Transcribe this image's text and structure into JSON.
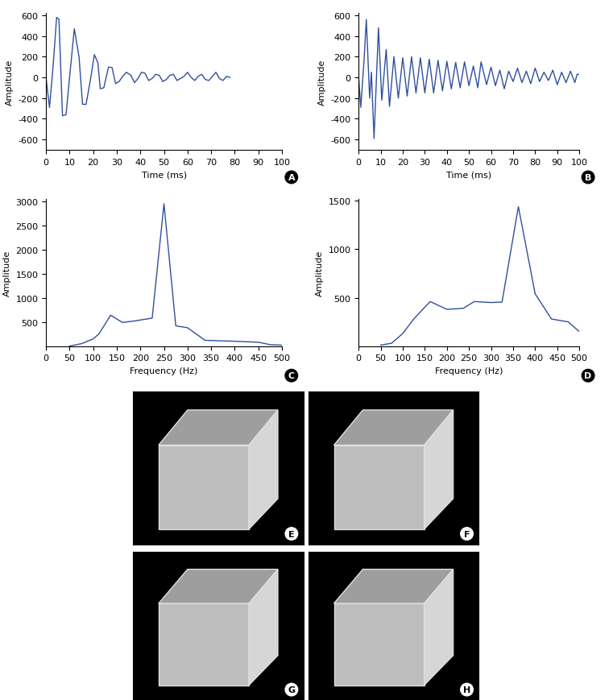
{
  "chart_data": [
    {
      "type": "line",
      "label": "A",
      "xlabel": "Time (ms)",
      "ylabel": "Amplitude",
      "color": "#2f4f9e",
      "x": [
        0,
        1.5,
        3,
        4.5,
        5.5,
        7,
        8.5,
        10,
        12,
        14,
        15.5,
        17,
        19,
        20.5,
        22,
        23,
        24.5,
        26.5,
        28,
        29.5,
        31,
        32.5,
        34,
        36,
        37.5,
        39,
        40.5,
        42,
        43.5,
        45,
        46.5,
        48,
        49.5,
        51,
        52.5,
        54,
        55.5,
        57,
        58.5,
        60,
        61.5,
        63,
        64.5,
        66,
        67.5,
        69,
        70.5,
        72,
        73.5,
        75,
        76.5,
        78
      ],
      "values": [
        0,
        -290,
        100,
        580,
        560,
        -370,
        -360,
        0,
        470,
        200,
        -260,
        -260,
        0,
        220,
        140,
        -110,
        -100,
        100,
        95,
        -60,
        -40,
        10,
        50,
        20,
        -50,
        -10,
        50,
        40,
        -30,
        -10,
        30,
        20,
        -40,
        -20,
        20,
        30,
        -30,
        -10,
        10,
        50,
        0,
        -30,
        10,
        30,
        -20,
        -30,
        10,
        50,
        -10,
        -30,
        10,
        0
      ],
      "xlim": [
        0,
        100
      ],
      "ylim": [
        -700,
        620
      ],
      "xticks": [
        0,
        10,
        20,
        30,
        40,
        50,
        60,
        70,
        80,
        90,
        100
      ],
      "yticks": [
        -600,
        -400,
        -200,
        0,
        200,
        400,
        600
      ]
    },
    {
      "type": "line",
      "label": "B",
      "xlabel": "Time (ms)",
      "ylabel": "Amplitude",
      "color": "#2f4f9e",
      "x": [
        0,
        1,
        2.5,
        3.5,
        5,
        5.8,
        7,
        9,
        10.5,
        12.5,
        14,
        16,
        18,
        20,
        22,
        24,
        26,
        28,
        30,
        32,
        34,
        36,
        38,
        40,
        42,
        44,
        46,
        48,
        50,
        52,
        54,
        55.5,
        58,
        60,
        62,
        64,
        66,
        68,
        70,
        72,
        74,
        76,
        78,
        80,
        82,
        84,
        86,
        88,
        90,
        92,
        94,
        96,
        98,
        99,
        100
      ],
      "values": [
        0,
        -290,
        180,
        560,
        -200,
        50,
        -590,
        480,
        -220,
        270,
        -280,
        200,
        -200,
        190,
        -180,
        200,
        -150,
        190,
        -150,
        175,
        -150,
        165,
        -130,
        155,
        -110,
        145,
        -100,
        150,
        -80,
        110,
        -100,
        150,
        -70,
        100,
        -80,
        70,
        -110,
        60,
        -40,
        90,
        -50,
        60,
        -60,
        90,
        -40,
        50,
        -30,
        70,
        -70,
        50,
        -50,
        60,
        -50,
        30,
        30
      ],
      "xlim": [
        0,
        100
      ],
      "ylim": [
        -700,
        620
      ],
      "xticks": [
        0,
        10,
        20,
        30,
        40,
        50,
        60,
        70,
        80,
        90,
        100
      ],
      "yticks": [
        -600,
        -400,
        -200,
        0,
        200,
        400,
        600
      ]
    },
    {
      "type": "line",
      "label": "C",
      "xlabel": "Frequency (Hz)",
      "ylabel": "Amplitude",
      "color": "#2f4f9e",
      "x": [
        50,
        75,
        100,
        112,
        137,
        162,
        187,
        225,
        250,
        275,
        300,
        337,
        400,
        450,
        475,
        500
      ],
      "values": [
        0,
        50,
        150,
        250,
        640,
        490,
        520,
        580,
        2950,
        420,
        380,
        120,
        100,
        80,
        30,
        20
      ],
      "xlim": [
        0,
        500
      ],
      "ylim": [
        0,
        3050
      ],
      "xticks": [
        0,
        50,
        100,
        150,
        200,
        250,
        300,
        350,
        400,
        450,
        500
      ],
      "yticks": [
        500,
        1000,
        1500,
        2000,
        2500,
        3000
      ]
    },
    {
      "type": "line",
      "label": "D",
      "xlabel": "Frequency (Hz)",
      "ylabel": "Amplitude",
      "color": "#2f4f9e",
      "x": [
        50,
        75,
        100,
        125,
        162,
        200,
        237,
        262,
        300,
        325,
        362,
        400,
        437,
        475,
        500
      ],
      "values": [
        10,
        30,
        130,
        280,
        460,
        380,
        390,
        460,
        450,
        455,
        1440,
        540,
        280,
        250,
        150
      ],
      "xlim": [
        0,
        500
      ],
      "ylim": [
        0,
        1520
      ],
      "xticks": [
        0,
        50,
        100,
        150,
        200,
        250,
        300,
        350,
        400,
        450,
        500
      ],
      "yticks": [
        500,
        1000,
        1500
      ]
    }
  ],
  "image_panels": [
    {
      "label": "E"
    },
    {
      "label": "F"
    },
    {
      "label": "G"
    },
    {
      "label": "H"
    }
  ]
}
